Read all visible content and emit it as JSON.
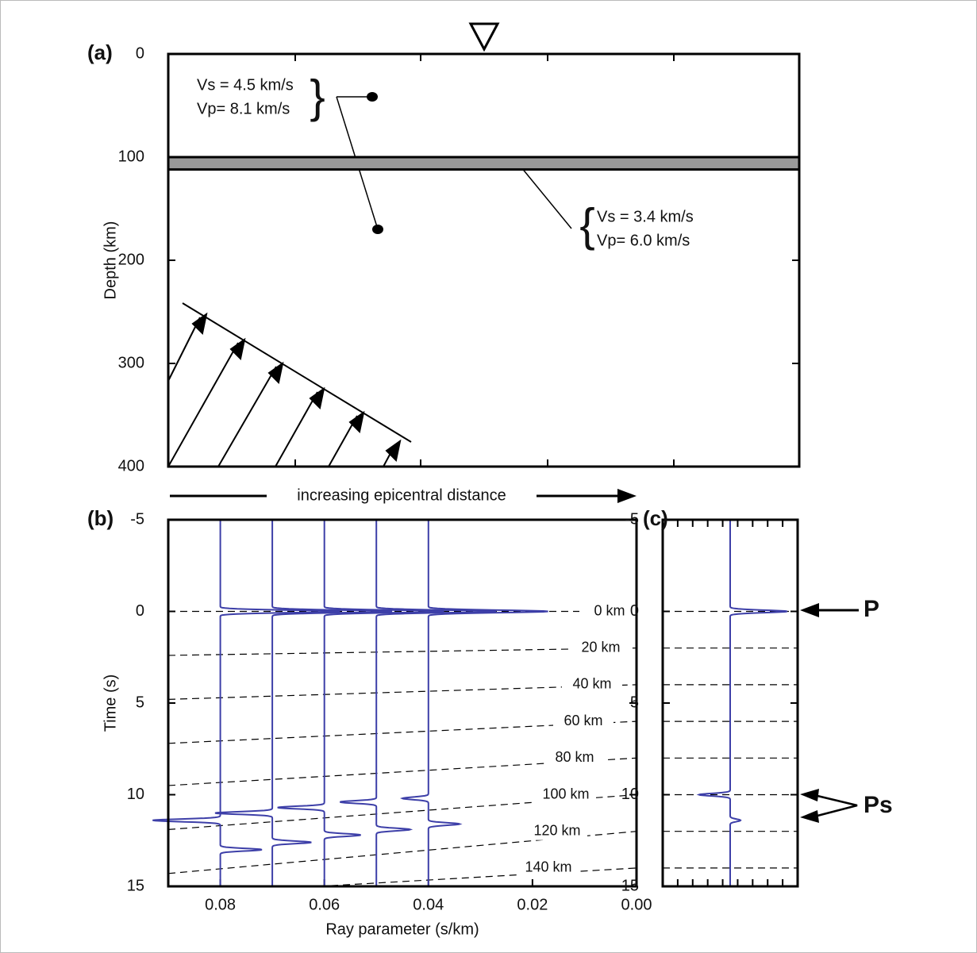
{
  "chart_data": [
    {
      "type": "model",
      "panel": "(a)",
      "y_label": "Depth (km)",
      "ylim": [
        0,
        400
      ],
      "yticks": [
        0,
        100,
        200,
        300,
        400
      ],
      "layer": [
        100,
        112
      ],
      "annotations": [
        "Vs = 4.5 km/s",
        "Vp= 8.1 km/s",
        "Vs = 3.4 km/s",
        "Vp= 6.0 km/s"
      ],
      "arrow_label": "increasing epicentral distance"
    },
    {
      "type": "traces",
      "panel": "(b)",
      "x_label": "Ray parameter (s/km)",
      "y_label": "Time (s)",
      "xlim": [
        0.09,
        0
      ],
      "ylim": [
        -5,
        15
      ],
      "xticks": [
        0.08,
        0.06,
        0.04,
        0.02,
        {
          "value": 0,
          "label": "0.00"
        }
      ],
      "yticks": [
        -5,
        0,
        5,
        10,
        15
      ],
      "color": "#3d3fa8",
      "traces": [
        {
          "x": 0.08,
          "times": [
            0,
            11.4,
            13.0
          ],
          "amps": [
            0.023,
            -0.013,
            0.008
          ]
        },
        {
          "x": 0.07,
          "times": [
            0,
            11.0,
            12.6
          ],
          "amps": [
            0.023,
            -0.011,
            0.0075
          ]
        },
        {
          "x": 0.06,
          "times": [
            0,
            10.7,
            12.2
          ],
          "amps": [
            0.023,
            -0.009,
            0.007
          ]
        },
        {
          "x": 0.05,
          "times": [
            0,
            10.4,
            11.9
          ],
          "amps": [
            0.023,
            -0.007,
            0.0065
          ]
        },
        {
          "x": 0.04,
          "times": [
            0,
            10.2,
            11.6
          ],
          "amps": [
            0.023,
            -0.005,
            0.006
          ]
        }
      ],
      "moveout": [
        {
          "label": "0 km",
          "x": [
            0.09,
            0
          ],
          "values": [
            0,
            0
          ]
        },
        {
          "label": "20 km",
          "x": [
            0.09,
            0
          ],
          "values": [
            2.4,
            2.0
          ]
        },
        {
          "label": "40 km",
          "x": [
            0.09,
            0
          ],
          "values": [
            4.8,
            4.0
          ]
        },
        {
          "label": "60 km",
          "x": [
            0.09,
            0
          ],
          "values": [
            7.2,
            6.0
          ]
        },
        {
          "label": "80 km",
          "x": [
            0.09,
            0
          ],
          "values": [
            9.5,
            8.0
          ]
        },
        {
          "label": "100 km",
          "x": [
            0.09,
            0
          ],
          "values": [
            11.9,
            10.0
          ]
        },
        {
          "label": "120 km",
          "x": [
            0.09,
            0
          ],
          "values": [
            14.3,
            12.0
          ]
        },
        {
          "label": "140 km",
          "x": [
            0.061,
            0
          ],
          "values": [
            15,
            14.0
          ]
        }
      ]
    },
    {
      "type": "traces",
      "panel": "(c)",
      "xlim": [
        0.013,
        -0.013
      ],
      "ylim": [
        -5,
        15
      ],
      "yticks": [
        -5,
        0,
        5,
        10,
        15
      ],
      "color": "#3d3fa8",
      "traces": [
        {
          "x": 0,
          "times": [
            0,
            10.0,
            11.4
          ],
          "amps": [
            0.011,
            -0.006,
            0.002
          ]
        }
      ],
      "levels": [
        0,
        2,
        4,
        6,
        8,
        10,
        12,
        14
      ],
      "annotations": [
        "P",
        "Ps"
      ]
    }
  ]
}
